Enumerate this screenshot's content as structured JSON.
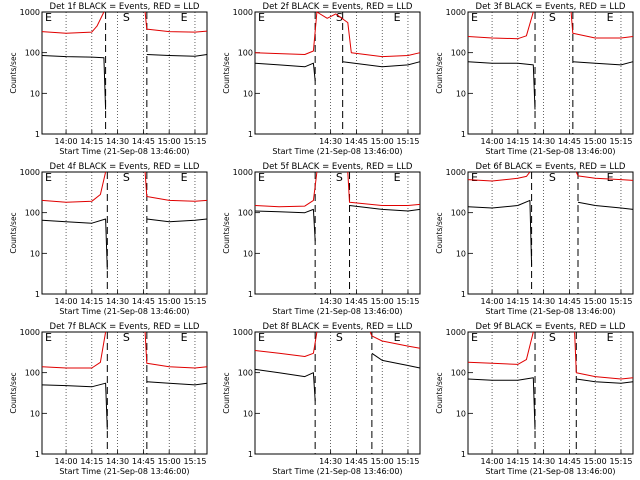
{
  "ylabel": "Counts/sec",
  "xlabel": "Start Time (21-Sep-08 13:46:00)",
  "legend_text": "BLACK = Events, RED = LLD",
  "ytick_labels": [
    "1",
    "10",
    "100",
    "1000"
  ],
  "colors": {
    "events": "#000000",
    "lld": "#e00000"
  },
  "chart_data": [
    {
      "type": "line",
      "title": "Det 1f BLACK = Events, RED = LLD",
      "xticks": [
        "14:00",
        "14:15",
        "14:30",
        "14:45",
        "15:00",
        "15:15"
      ],
      "ylim": [
        1,
        1000
      ],
      "yscale": "log",
      "markers": [
        "E",
        "S",
        "E"
      ],
      "series": [
        {
          "name": "Events",
          "x": [
            "13:46",
            "14:00",
            "14:15",
            "14:22",
            "14:23",
            "14:25",
            "14:46",
            "14:47",
            "15:00",
            "15:15",
            "15:22"
          ],
          "values": [
            85,
            80,
            78,
            75,
            4,
            null,
            null,
            90,
            85,
            82,
            90
          ]
        },
        {
          "name": "LLD",
          "x": [
            "13:46",
            "14:00",
            "14:15",
            "14:18",
            "14:22",
            "14:25",
            "14:46",
            "14:47",
            "15:00",
            "15:15",
            "15:22"
          ],
          "values": [
            330,
            300,
            320,
            450,
            1000,
            null,
            1000,
            380,
            330,
            320,
            340
          ]
        }
      ]
    },
    {
      "type": "line",
      "title": "Det 2f BLACK = Events, RED = LLD",
      "xticks": [
        "14:30",
        "14:45",
        "15:00",
        "15:15"
      ],
      "ylim": [
        1,
        1000
      ],
      "yscale": "log",
      "markers": [
        "E",
        "S",
        "E"
      ],
      "series": [
        {
          "name": "Events",
          "x": [
            "13:46",
            "14:00",
            "14:15",
            "14:20",
            "14:21",
            "14:22",
            "14:36",
            "14:37",
            "15:00",
            "15:15",
            "15:22"
          ],
          "values": [
            55,
            50,
            45,
            55,
            20,
            null,
            null,
            60,
            45,
            50,
            60
          ]
        },
        {
          "name": "LLD",
          "x": [
            "13:46",
            "14:00",
            "14:15",
            "14:20",
            "14:22",
            "14:28",
            "14:33",
            "14:40",
            "14:42",
            "15:00",
            "15:15",
            "15:22"
          ],
          "values": [
            100,
            95,
            90,
            110,
            1000,
            700,
            900,
            550,
            100,
            80,
            85,
            100
          ]
        }
      ]
    },
    {
      "type": "line",
      "title": "Det 3f BLACK = Events, RED = LLD",
      "xticks": [
        "14:00",
        "14:15",
        "14:30",
        "14:45",
        "15:00",
        "15:15"
      ],
      "ylim": [
        1,
        1000
      ],
      "yscale": "log",
      "markers": [
        "E",
        "S",
        "E"
      ],
      "series": [
        {
          "name": "Events",
          "x": [
            "13:46",
            "14:00",
            "14:15",
            "14:24",
            "14:25",
            "14:26",
            "14:46",
            "14:47",
            "15:00",
            "15:15",
            "15:22"
          ],
          "values": [
            60,
            55,
            55,
            50,
            4,
            null,
            null,
            60,
            55,
            50,
            60
          ]
        },
        {
          "name": "LLD",
          "x": [
            "13:46",
            "14:00",
            "14:15",
            "14:20",
            "14:24",
            "14:26",
            "14:46",
            "14:47",
            "15:00",
            "15:15",
            "15:22"
          ],
          "values": [
            250,
            230,
            220,
            260,
            1000,
            null,
            1000,
            300,
            230,
            230,
            250
          ]
        }
      ]
    },
    {
      "type": "line",
      "title": "Det 4f BLACK = Events, RED = LLD",
      "xticks": [
        "14:00",
        "14:15",
        "14:30",
        "14:45",
        "15:00",
        "15:15"
      ],
      "ylim": [
        1,
        1000
      ],
      "yscale": "log",
      "markers": [
        "E",
        "S",
        "E"
      ],
      "series": [
        {
          "name": "Events",
          "x": [
            "13:46",
            "14:00",
            "14:15",
            "14:23",
            "14:24",
            "14:25",
            "14:46",
            "14:47",
            "15:00",
            "15:15",
            "15:22"
          ],
          "values": [
            65,
            60,
            55,
            70,
            4,
            null,
            null,
            70,
            60,
            65,
            70
          ]
        },
        {
          "name": "LLD",
          "x": [
            "13:46",
            "14:00",
            "14:15",
            "14:20",
            "14:23",
            "14:25",
            "14:46",
            "14:47",
            "15:00",
            "15:15",
            "15:22"
          ],
          "values": [
            200,
            180,
            190,
            280,
            1000,
            null,
            1000,
            250,
            200,
            190,
            200
          ]
        }
      ]
    },
    {
      "type": "line",
      "title": "Det 5f BLACK = Events, RED = LLD",
      "xticks": [
        "14:30",
        "14:45",
        "15:00",
        "15:15"
      ],
      "ylim": [
        1,
        1000
      ],
      "yscale": "log",
      "markers": [
        "E",
        "S",
        "E"
      ],
      "series": [
        {
          "name": "Events",
          "x": [
            "13:46",
            "14:00",
            "14:15",
            "14:20",
            "14:21",
            "14:22",
            "14:40",
            "14:41",
            "15:00",
            "15:15",
            "15:22"
          ],
          "values": [
            110,
            105,
            100,
            120,
            20,
            null,
            null,
            150,
            120,
            110,
            120
          ]
        },
        {
          "name": "LLD",
          "x": [
            "13:46",
            "14:00",
            "14:15",
            "14:20",
            "14:22",
            "14:25",
            "14:40",
            "14:41",
            "15:00",
            "15:15",
            "15:22"
          ],
          "values": [
            150,
            140,
            145,
            200,
            1000,
            null,
            1000,
            180,
            150,
            150,
            160
          ]
        }
      ]
    },
    {
      "type": "line",
      "title": "Det 6f BLACK = Events, RED = LLD",
      "xticks": [
        "14:00",
        "14:15",
        "14:30",
        "14:45",
        "15:00",
        "15:15"
      ],
      "ylim": [
        1,
        1000
      ],
      "yscale": "log",
      "markers": [
        "E",
        "S",
        "E"
      ],
      "series": [
        {
          "name": "Events",
          "x": [
            "13:46",
            "14:00",
            "14:15",
            "14:22",
            "14:23",
            "14:24",
            "14:49",
            "14:50",
            "15:00",
            "15:15",
            "15:22"
          ],
          "values": [
            140,
            130,
            150,
            200,
            5,
            null,
            null,
            180,
            150,
            130,
            120
          ]
        },
        {
          "name": "LLD",
          "x": [
            "13:46",
            "14:00",
            "14:15",
            "14:20",
            "14:22",
            "14:24",
            "14:49",
            "14:50",
            "15:00",
            "15:15",
            "15:22"
          ],
          "values": [
            650,
            600,
            700,
            780,
            1000,
            null,
            1000,
            800,
            700,
            650,
            620
          ]
        }
      ]
    },
    {
      "type": "line",
      "title": "Det 7f BLACK = Events, RED = LLD",
      "xticks": [
        "14:00",
        "14:15",
        "14:30",
        "14:45",
        "15:00",
        "15:15"
      ],
      "ylim": [
        1,
        1000
      ],
      "yscale": "log",
      "markers": [
        "E",
        "S",
        "E"
      ],
      "series": [
        {
          "name": "Events",
          "x": [
            "13:46",
            "14:00",
            "14:15",
            "14:23",
            "14:24",
            "14:25",
            "14:46",
            "14:47",
            "15:00",
            "15:15",
            "15:22"
          ],
          "values": [
            50,
            48,
            45,
            55,
            4,
            null,
            null,
            60,
            55,
            50,
            55
          ]
        },
        {
          "name": "LLD",
          "x": [
            "13:46",
            "14:00",
            "14:15",
            "14:20",
            "14:23",
            "14:25",
            "14:46",
            "14:47",
            "15:00",
            "15:15",
            "15:22"
          ],
          "values": [
            140,
            130,
            130,
            180,
            1000,
            null,
            1000,
            170,
            140,
            130,
            140
          ]
        }
      ]
    },
    {
      "type": "line",
      "title": "Det 8f BLACK = Events, RED = LLD",
      "xticks": [
        "14:30",
        "14:45",
        "15:00",
        "15:15"
      ],
      "ylim": [
        1,
        1000
      ],
      "yscale": "log",
      "markers": [
        "E",
        "S",
        "E"
      ],
      "series": [
        {
          "name": "Events",
          "x": [
            "13:46",
            "14:00",
            "14:15",
            "14:20",
            "14:21",
            "14:22",
            "14:53",
            "14:54",
            "15:00",
            "15:15",
            "15:22"
          ],
          "values": [
            120,
            100,
            80,
            100,
            20,
            null,
            null,
            300,
            200,
            150,
            130
          ]
        },
        {
          "name": "LLD",
          "x": [
            "13:46",
            "14:00",
            "14:15",
            "14:20",
            "14:22",
            "14:25",
            "14:53",
            "14:54",
            "15:00",
            "15:15",
            "15:22"
          ],
          "values": [
            350,
            300,
            250,
            300,
            1000,
            null,
            1000,
            800,
            600,
            450,
            400
          ]
        }
      ]
    },
    {
      "type": "line",
      "title": "Det 9f BLACK = Events, RED = LLD",
      "xticks": [
        "14:00",
        "14:15",
        "14:30",
        "14:45",
        "15:00",
        "15:15"
      ],
      "ylim": [
        1,
        1000
      ],
      "yscale": "log",
      "markers": [
        "E",
        "S",
        "E"
      ],
      "series": [
        {
          "name": "Events",
          "x": [
            "13:46",
            "14:00",
            "14:15",
            "14:24",
            "14:25",
            "14:26",
            "14:48",
            "14:49",
            "15:00",
            "15:15",
            "15:22"
          ],
          "values": [
            70,
            65,
            65,
            75,
            4,
            null,
            null,
            70,
            60,
            55,
            60
          ]
        },
        {
          "name": "LLD",
          "x": [
            "13:46",
            "14:00",
            "14:15",
            "14:20",
            "14:24",
            "14:26",
            "14:48",
            "14:49",
            "15:00",
            "15:15",
            "15:22"
          ],
          "values": [
            180,
            170,
            160,
            210,
            1000,
            null,
            1000,
            100,
            80,
            70,
            75
          ]
        }
      ]
    }
  ]
}
